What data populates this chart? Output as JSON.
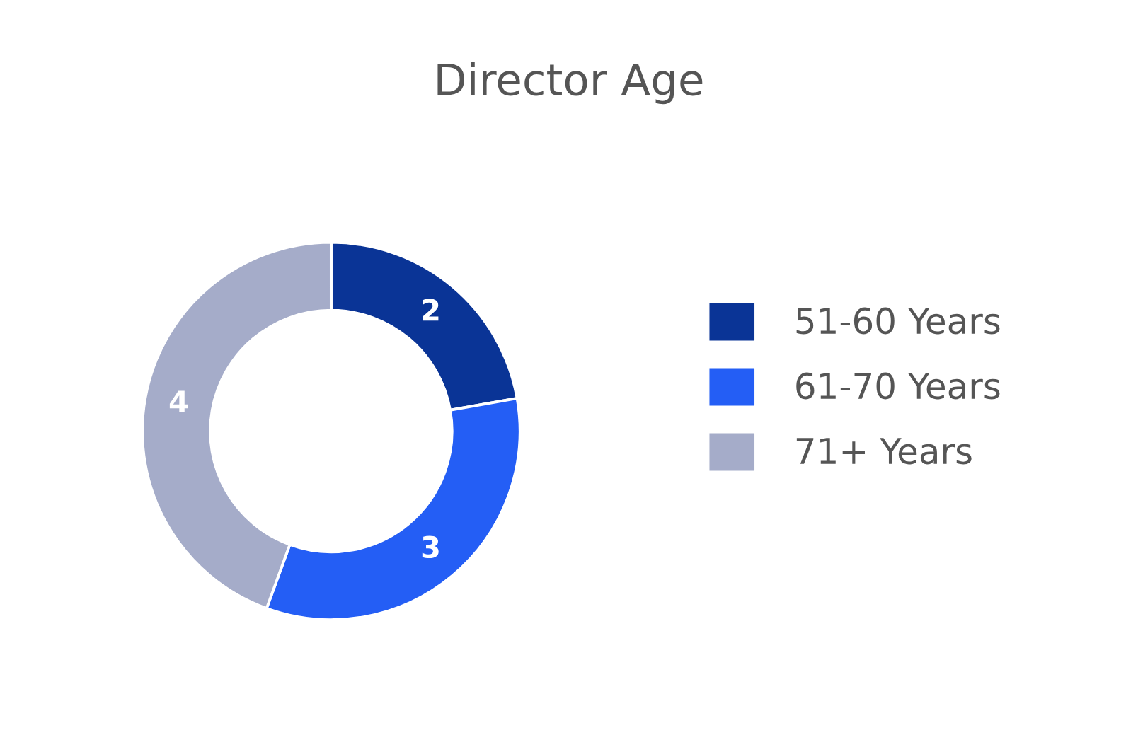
{
  "chart_data": {
    "type": "donut",
    "title": "Director Age",
    "categories": [
      "51-60 Years",
      "61-70 Years",
      "71+ Years"
    ],
    "values": [
      2,
      3,
      4
    ],
    "colors": [
      "#0a3496",
      "#245ef5",
      "#a5acc9"
    ],
    "data_labels": true,
    "legend": "right"
  }
}
